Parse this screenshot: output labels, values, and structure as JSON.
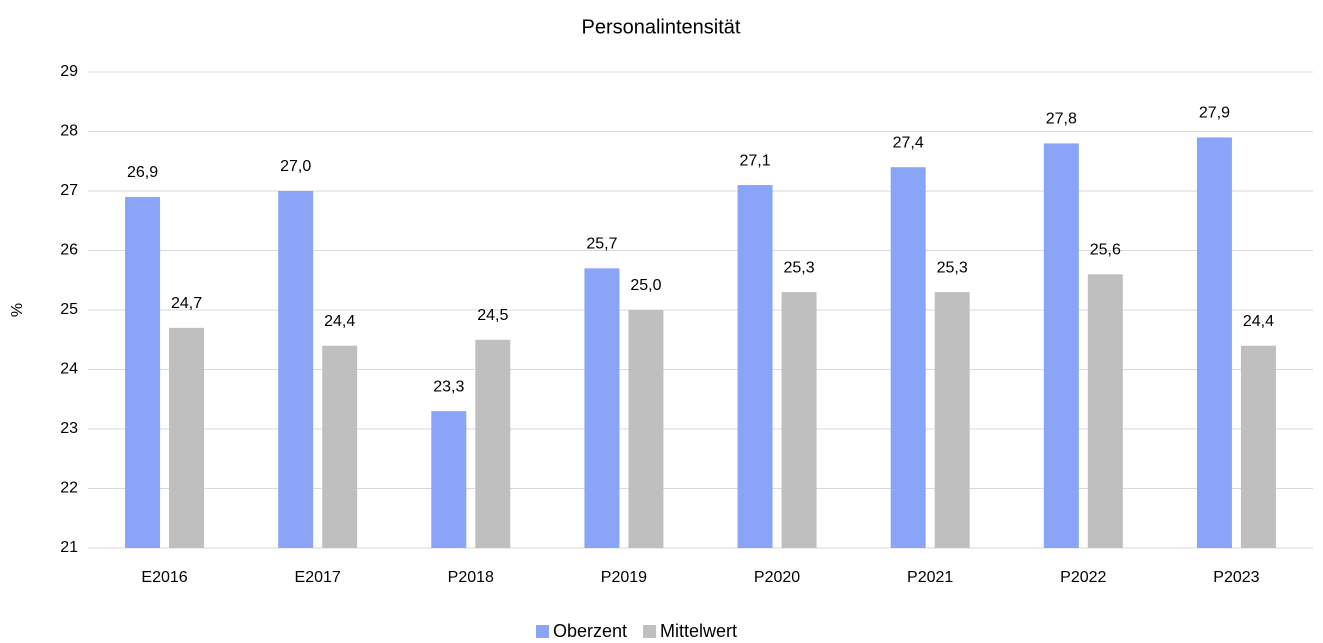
{
  "chart_data": {
    "type": "bar",
    "title": "Personalintensität",
    "y_label": "%",
    "categories": [
      "E2016",
      "E2017",
      "P2018",
      "P2019",
      "P2020",
      "P2021",
      "P2022",
      "P2023"
    ],
    "series": [
      {
        "name": "Oberzent",
        "color": "#8aa4f8",
        "values": [
          26.9,
          27.0,
          23.3,
          25.7,
          27.1,
          27.4,
          27.8,
          27.9
        ],
        "value_labels": [
          "26,9",
          "27,0",
          "23,3",
          "25,7",
          "27,1",
          "27,4",
          "27,8",
          "27,9"
        ]
      },
      {
        "name": "Mittelwert",
        "color": "#bfbfbf",
        "values": [
          24.7,
          24.4,
          24.5,
          25.0,
          25.3,
          25.3,
          25.6,
          24.4
        ],
        "value_labels": [
          "24,7",
          "24,4",
          "24,5",
          "25,0",
          "25,3",
          "25,3",
          "25,6",
          "24,4"
        ]
      }
    ],
    "ylim": [
      21,
      29
    ],
    "yticks": [
      21,
      22,
      23,
      24,
      25,
      26,
      27,
      28,
      29
    ],
    "grid": true,
    "legend": "bottom"
  }
}
